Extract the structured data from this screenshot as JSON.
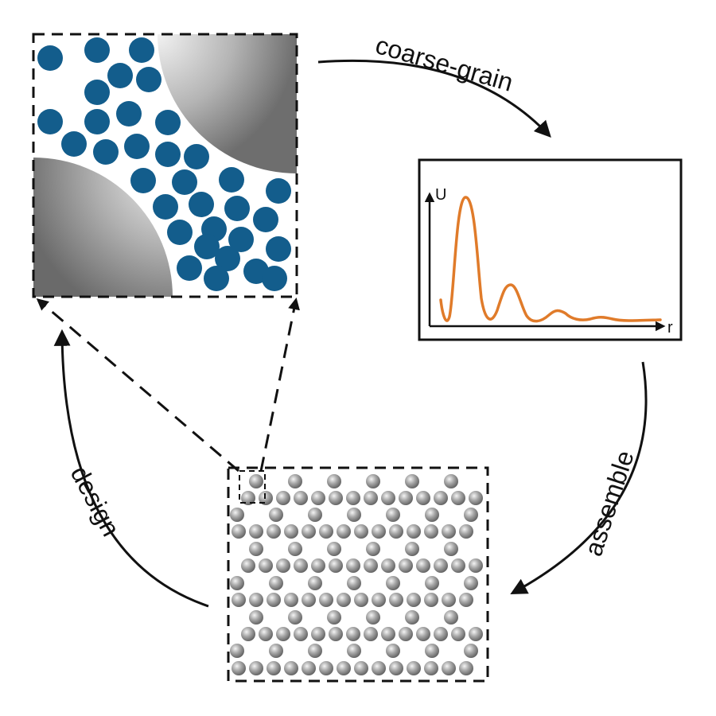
{
  "labels": {
    "coarse_grain": "coarse-grain",
    "assemble": "assemble",
    "design": "design"
  },
  "potential_plot": {
    "y_axis_label": "U",
    "x_axis_label": "r",
    "curve_color": "#e07b2a"
  },
  "colors": {
    "particle_blue": "#135d8c",
    "stroke": "#111111",
    "crystal_particle": "#8c8c8c"
  },
  "icons": {
    "large_colloid": "grey-gradient-sphere",
    "small_particle": "blue-disc",
    "crystal_particle": "grey-sphere"
  }
}
